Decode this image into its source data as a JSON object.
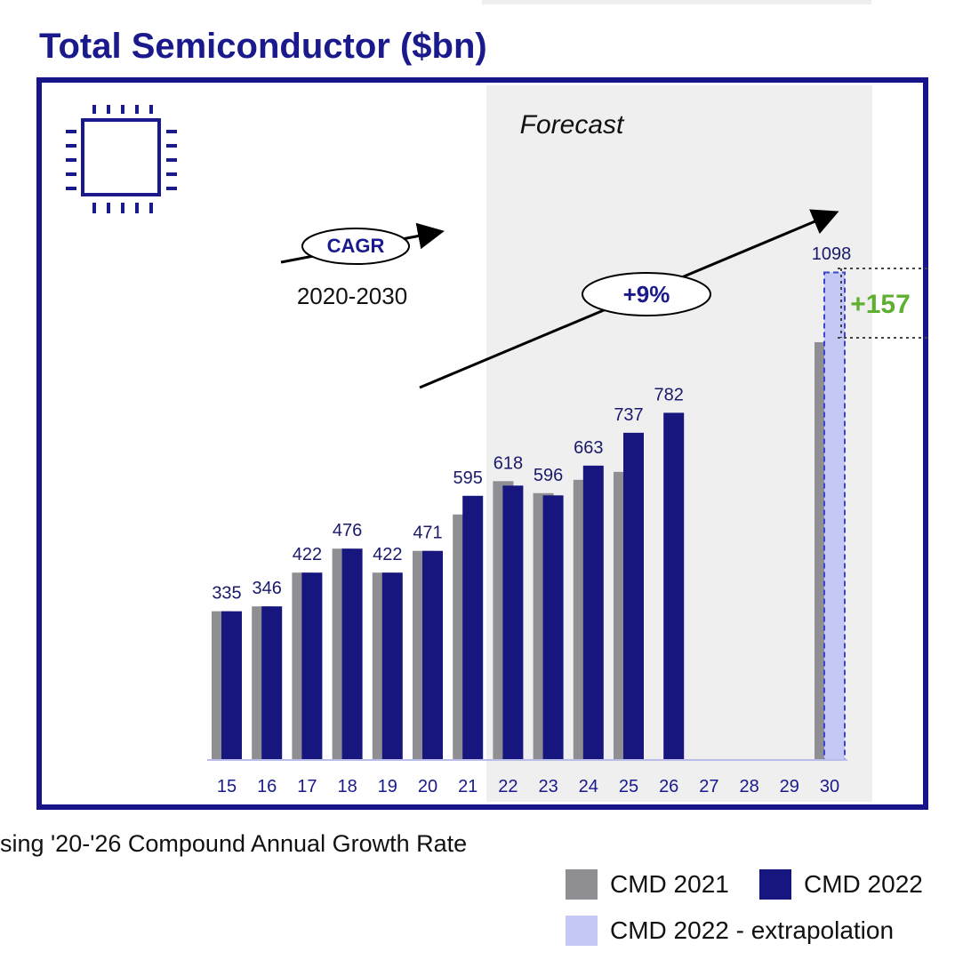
{
  "title": "Total Semiconductor ($bn)",
  "footnote": "sing '20-'26 Compound Annual Growth Rate",
  "forecast_label": "Forecast",
  "cagr": {
    "label": "CAGR",
    "period": "2020-2030",
    "rate": "+9%"
  },
  "delta_label": "+157",
  "icons": {
    "chip": "chip-icon"
  },
  "colors": {
    "cmd2021": "#8e8e93",
    "cmd2022": "#16167e",
    "extrapolation": "#c3c8f5",
    "forecast_bg": "#efefef",
    "delta": "#5fb030",
    "accent": "#1a1a8c"
  },
  "legend": [
    {
      "key": "cmd2021",
      "label": "CMD 2021"
    },
    {
      "key": "cmd2022",
      "label": "CMD 2022"
    },
    {
      "key": "extrapolation",
      "label": "CMD 2022 - extrapolation"
    }
  ],
  "chart_data": {
    "type": "bar",
    "title": "Total Semiconductor ($bn)",
    "categories": [
      "15",
      "16",
      "17",
      "18",
      "19",
      "20",
      "21",
      "22",
      "23",
      "24",
      "25",
      "26",
      "27",
      "28",
      "29",
      "30"
    ],
    "forecast_start": "22",
    "series": [
      {
        "name": "CMD 2021",
        "values": [
          335,
          346,
          422,
          476,
          422,
          471,
          553,
          628,
          601,
          631,
          649,
          null,
          null,
          null,
          null,
          941
        ]
      },
      {
        "name": "CMD 2022",
        "values": [
          335,
          346,
          422,
          476,
          422,
          471,
          595,
          618,
          596,
          663,
          737,
          782,
          null,
          null,
          null,
          null
        ]
      },
      {
        "name": "CMD 2022 - extrapolation",
        "values": [
          null,
          null,
          null,
          null,
          null,
          null,
          null,
          null,
          null,
          null,
          null,
          null,
          null,
          null,
          null,
          1098
        ]
      }
    ],
    "data_labels": [
      "335",
      "346",
      "422",
      "476",
      "422",
      "471",
      "595",
      "618",
      "596",
      "663",
      "737",
      "782",
      "",
      "",
      "",
      "1098"
    ],
    "ylim": [
      0,
      1150
    ],
    "grid": false,
    "legend_position": "bottom-right"
  }
}
